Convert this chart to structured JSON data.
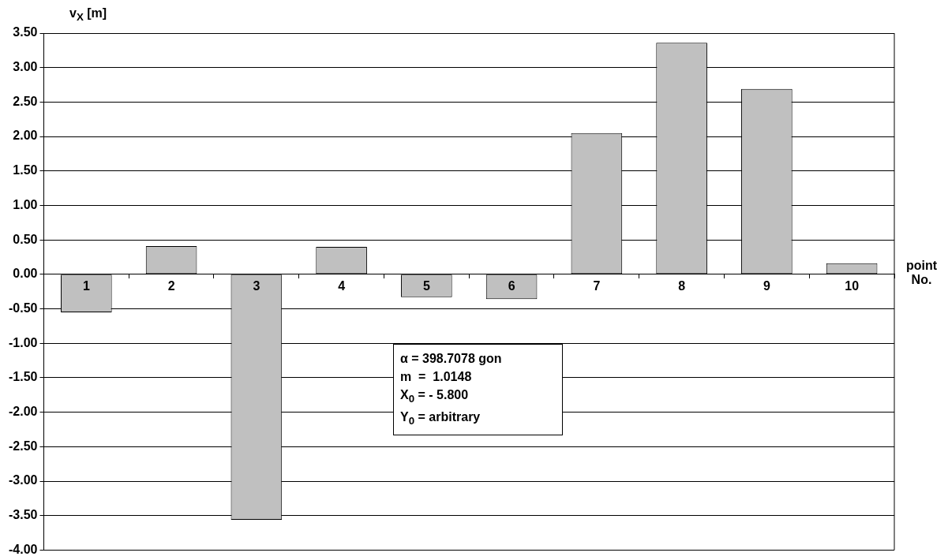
{
  "chart_data": {
    "type": "bar",
    "ylabel": "v$_{X}$ [m]",
    "xlabel": "point No.",
    "categories": [
      "1",
      "2",
      "3",
      "4",
      "5",
      "6",
      "7",
      "8",
      "9",
      "10"
    ],
    "values": [
      -0.55,
      0.41,
      -3.56,
      0.4,
      -0.33,
      -0.36,
      2.05,
      3.36,
      2.69,
      0.16
    ],
    "color": "#c0c0c0",
    "ylim": [
      -4,
      3.5
    ],
    "yticks": [
      {
        "value": -4,
        "label": "-4.00"
      },
      {
        "value": -3.5,
        "label": "-3.50"
      },
      {
        "value": -3,
        "label": "-3.00"
      },
      {
        "value": -2.5,
        "label": "-2.50"
      },
      {
        "value": -2,
        "label": "-2.00"
      },
      {
        "value": -1.5,
        "label": "-1.50"
      },
      {
        "value": -1,
        "label": "-1.00"
      },
      {
        "value": -0.5,
        "label": "-0.50"
      },
      {
        "value": 0,
        "label": "0.00"
      },
      {
        "value": 0.5,
        "label": "0.50"
      },
      {
        "value": 1,
        "label": "1.00"
      },
      {
        "value": 1.5,
        "label": "1.50"
      },
      {
        "value": 2,
        "label": "2.00"
      },
      {
        "value": 2.5,
        "label": "2.50"
      },
      {
        "value": 3,
        "label": "3.00"
      },
      {
        "value": 3.5,
        "label": "3.50"
      }
    ],
    "grid": "y",
    "legend": false,
    "annotations": [
      "α = 398.7078 gon",
      "m  =  1.0148",
      "X$_{0}$ = - 5.800",
      "Y$_{0}$ = arbitrary"
    ]
  }
}
